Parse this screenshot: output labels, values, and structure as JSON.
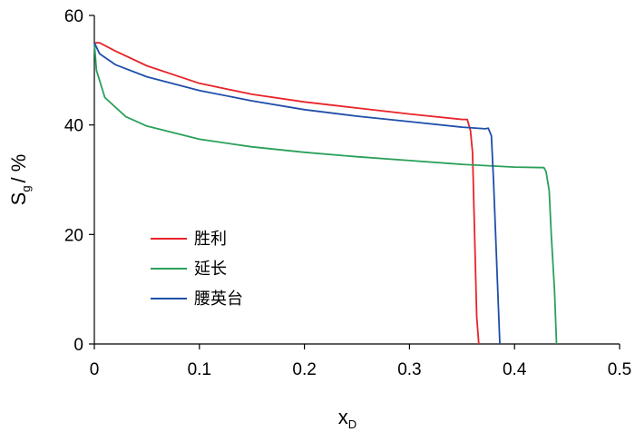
{
  "chart_data": {
    "type": "line",
    "xlabel": {
      "main": "x",
      "sub": "D"
    },
    "ylabel": {
      "main": "S",
      "sub": "g",
      "suffix": "/ %"
    },
    "xlim": [
      0,
      0.5
    ],
    "ylim": [
      0,
      60
    ],
    "x_ticks": [
      "0",
      "0.1",
      "0.2",
      "0.3",
      "0.4",
      "0.5"
    ],
    "x_tick_values": [
      0,
      0.1,
      0.2,
      0.3,
      0.4,
      0.5
    ],
    "y_ticks": [
      "0",
      "20",
      "40",
      "60"
    ],
    "y_tick_values": [
      0,
      20,
      40,
      60
    ],
    "grid": false,
    "legend_position": "left-middle",
    "series": [
      {
        "name": "胜利",
        "color": "#e8232a",
        "points": [
          [
            0,
            55
          ],
          [
            0.005,
            55
          ],
          [
            0.02,
            53.5
          ],
          [
            0.05,
            50.8
          ],
          [
            0.1,
            47.6
          ],
          [
            0.15,
            45.6
          ],
          [
            0.2,
            44.2
          ],
          [
            0.25,
            43.1
          ],
          [
            0.3,
            42
          ],
          [
            0.35,
            41
          ],
          [
            0.355,
            41
          ],
          [
            0.358,
            39
          ],
          [
            0.36,
            35
          ],
          [
            0.362,
            20
          ],
          [
            0.364,
            5
          ],
          [
            0.366,
            0
          ]
        ]
      },
      {
        "name": "延长",
        "color": "#2aa05a",
        "points": [
          [
            0,
            55
          ],
          [
            0.002,
            50
          ],
          [
            0.01,
            45
          ],
          [
            0.03,
            41.5
          ],
          [
            0.05,
            39.8
          ],
          [
            0.1,
            37.4
          ],
          [
            0.15,
            36
          ],
          [
            0.2,
            35
          ],
          [
            0.25,
            34.2
          ],
          [
            0.3,
            33.5
          ],
          [
            0.35,
            32.8
          ],
          [
            0.4,
            32.3
          ],
          [
            0.428,
            32.2
          ],
          [
            0.43,
            31.5
          ],
          [
            0.433,
            28
          ],
          [
            0.435,
            20
          ],
          [
            0.438,
            10
          ],
          [
            0.44,
            0
          ]
        ]
      },
      {
        "name": "腰英台",
        "color": "#1f4ea8",
        "points": [
          [
            0,
            55
          ],
          [
            0.005,
            53
          ],
          [
            0.02,
            51
          ],
          [
            0.05,
            48.8
          ],
          [
            0.1,
            46.3
          ],
          [
            0.15,
            44.4
          ],
          [
            0.2,
            42.8
          ],
          [
            0.25,
            41.6
          ],
          [
            0.3,
            40.6
          ],
          [
            0.35,
            39.6
          ],
          [
            0.372,
            39.3
          ],
          [
            0.375,
            39.4
          ],
          [
            0.378,
            38
          ],
          [
            0.38,
            30
          ],
          [
            0.383,
            15
          ],
          [
            0.386,
            0
          ]
        ]
      }
    ]
  }
}
